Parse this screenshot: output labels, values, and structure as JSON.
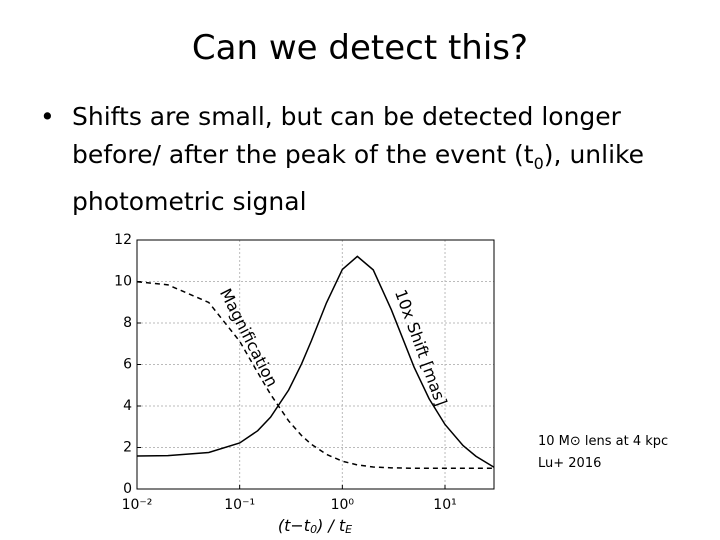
{
  "slide": {
    "title": "Can we detect this?",
    "bullet": [
      "Shifts are small, but can be detected longer before/ after the peak of the event (t",
      "0",
      "), unlike photometric signal"
    ]
  },
  "chart_data": {
    "type": "line",
    "x": [
      0.01,
      0.02,
      0.05,
      0.1,
      0.15,
      0.2,
      0.3,
      0.4,
      0.5,
      0.7,
      1,
      1.4,
      2,
      3,
      5,
      7,
      10,
      15,
      20,
      30
    ],
    "series": [
      {
        "name": "Magnification",
        "color": "#000000",
        "style": "dashed",
        "values": [
          9.99,
          9.84,
          8.99,
          7.12,
          5.61,
          4.56,
          3.28,
          2.58,
          2.15,
          1.67,
          1.34,
          1.16,
          1.06,
          1.02,
          1.0,
          1.0,
          1.0,
          1.0,
          1.0,
          1.0
        ]
      },
      {
        "name": "10x Shift [mas]",
        "color": "#000000",
        "style": "solid",
        "values": [
          1.59,
          1.61,
          1.76,
          2.22,
          2.81,
          3.46,
          4.77,
          6.02,
          7.15,
          8.97,
          10.58,
          11.21,
          10.56,
          8.64,
          5.87,
          4.35,
          3.11,
          2.09,
          1.58,
          1.05
        ]
      }
    ],
    "xlabel": [
      "(t−t",
      "0",
      ")  /  t",
      "E"
    ],
    "xlog": true,
    "xlim": [
      0.01,
      30
    ],
    "xticks": [
      {
        "value": 0.01,
        "label": "10⁻²"
      },
      {
        "value": 0.1,
        "label": "10⁻¹"
      },
      {
        "value": 1,
        "label": "10⁰"
      },
      {
        "value": 10,
        "label": "10¹"
      }
    ],
    "ylim": [
      0,
      12
    ],
    "yticks": [
      0,
      2,
      4,
      6,
      8,
      10,
      12
    ],
    "grid": true
  },
  "note": [
    "10 M⊙ lens at 4 kpc",
    "Lu+ 2016"
  ]
}
